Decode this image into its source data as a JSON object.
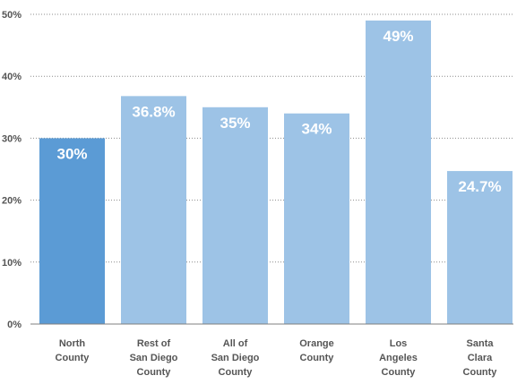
{
  "chart_data": {
    "type": "bar",
    "categories": [
      [
        "North",
        "County"
      ],
      [
        "Rest of",
        "San Diego",
        "County"
      ],
      [
        "All of",
        "San Diego",
        "County"
      ],
      [
        "Orange",
        "County"
      ],
      [
        "Los",
        "Angeles",
        "County"
      ],
      [
        "Santa",
        "Clara",
        "County"
      ]
    ],
    "values": [
      30,
      36.8,
      35,
      34,
      49,
      24.7
    ],
    "data_labels": [
      "30%",
      "36.8%",
      "35%",
      "34%",
      "49%",
      "24.7%"
    ],
    "ylim": [
      0,
      50
    ],
    "yticks": [
      0,
      10,
      20,
      30,
      40,
      50
    ],
    "ytick_labels": [
      "0%",
      "10%",
      "20%",
      "30%",
      "40%",
      "50%"
    ],
    "grid": "dotted horizontal",
    "colors": {
      "highlight": "#5b9bd5",
      "default": "#9dc3e6",
      "axis": "#7f7f7f",
      "grid": "#8c8c8c",
      "text": "#555555"
    },
    "highlight_index": 0
  }
}
